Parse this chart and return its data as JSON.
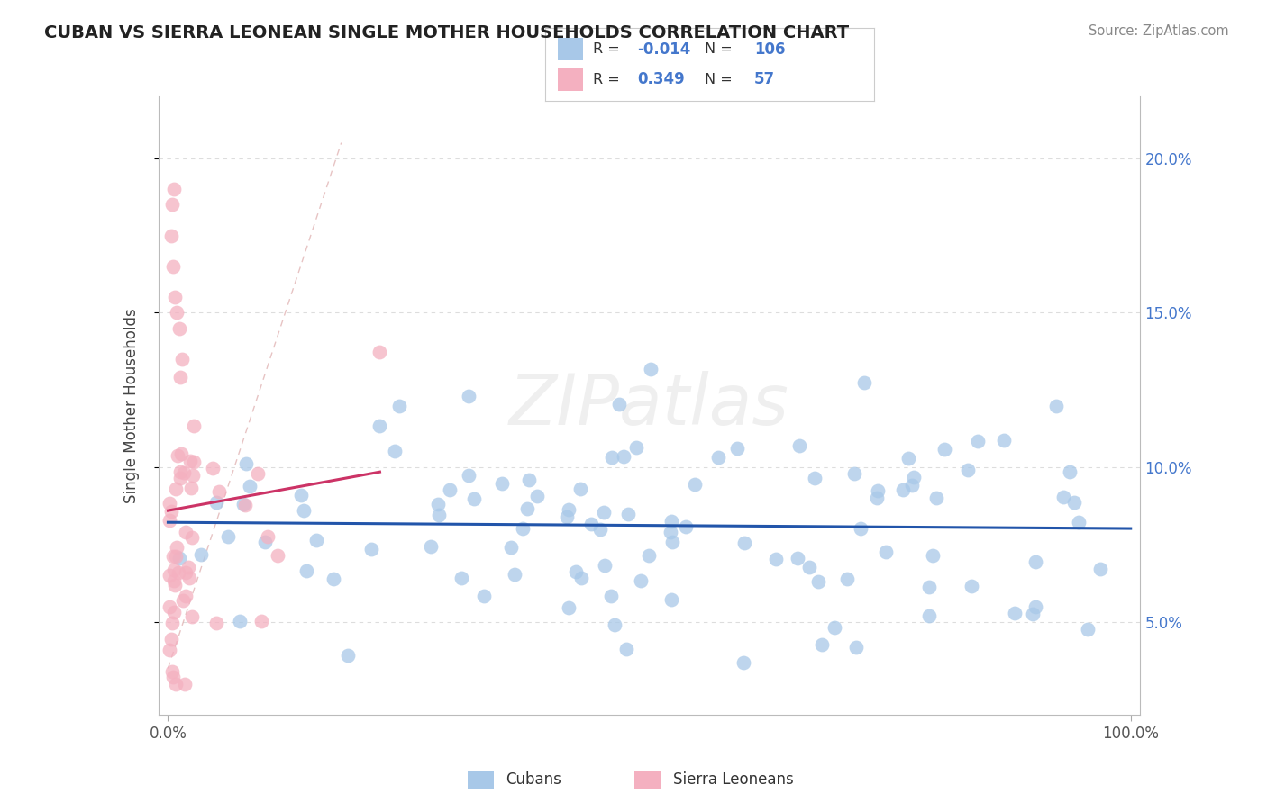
{
  "title": "CUBAN VS SIERRA LEONEAN SINGLE MOTHER HOUSEHOLDS CORRELATION CHART",
  "source": "Source: ZipAtlas.com",
  "ylabel": "Single Mother Households",
  "legend_r_cuban": "-0.014",
  "legend_n_cuban": "106",
  "legend_r_sierra": "0.349",
  "legend_n_sierra": "57",
  "cuban_color": "#a8c8e8",
  "sierra_color": "#f4b0c0",
  "cuban_line_color": "#2255aa",
  "sierra_line_color": "#cc3366",
  "ref_line_color": "#ddaaaa",
  "watermark": "ZIPatlas",
  "right_tick_color": "#4477cc",
  "background_color": "#ffffff",
  "xlim_min": -1,
  "xlim_max": 101,
  "ylim_min": 2.0,
  "ylim_max": 22.0,
  "yticks": [
    5.0,
    10.0,
    15.0,
    20.0
  ],
  "grid_color": "#dddddd",
  "scatter_size": 130,
  "scatter_alpha": 0.75
}
